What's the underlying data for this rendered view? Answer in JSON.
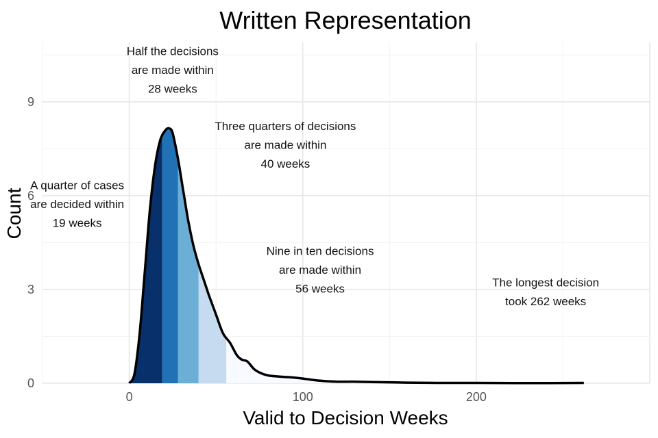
{
  "chart_data": {
    "type": "area",
    "title": "Written Representation",
    "xlabel": "Valid to Decision Weeks",
    "ylabel": "Count",
    "xlim": [
      -50,
      300
    ],
    "ylim": [
      0,
      10.9
    ],
    "x_ticks": [
      0,
      100,
      200
    ],
    "y_ticks": [
      0,
      3,
      6,
      9
    ],
    "grid": true,
    "legend": "none",
    "curve": {
      "x": [
        0,
        3,
        6,
        9,
        12,
        15,
        18,
        21,
        23,
        25,
        28,
        31,
        34,
        37,
        40,
        43,
        46,
        50,
        54,
        58,
        62,
        65,
        68,
        72,
        76,
        80,
        85,
        90,
        95,
        100,
        110,
        120,
        130,
        140,
        150,
        160,
        180,
        200,
        230,
        262
      ],
      "y": [
        0,
        0.3,
        1.6,
        3.6,
        5.6,
        7.0,
        7.8,
        8.1,
        8.15,
        8.0,
        7.2,
        6.2,
        5.2,
        4.4,
        3.8,
        3.3,
        2.8,
        2.2,
        1.6,
        1.3,
        0.9,
        0.75,
        0.7,
        0.45,
        0.32,
        0.25,
        0.22,
        0.2,
        0.18,
        0.15,
        0.08,
        0.05,
        0.05,
        0.04,
        0.03,
        0.02,
        0.01,
        0.01,
        0.005,
        0.01
      ]
    },
    "bands": [
      {
        "from": 0,
        "to": 19,
        "color": "#08306b"
      },
      {
        "from": 19,
        "to": 28,
        "color": "#2171b5"
      },
      {
        "from": 28,
        "to": 40,
        "color": "#6baed6"
      },
      {
        "from": 40,
        "to": 56,
        "color": "#c6dbef"
      },
      {
        "from": 56,
        "to": 262,
        "color": "#f7fbff"
      }
    ],
    "annotations": [
      {
        "lines": [
          "A quarter of cases",
          "are decided within",
          "19 weeks"
        ],
        "x": -30,
        "y": 6.2
      },
      {
        "lines": [
          "Half the decisions",
          "are made within",
          "28 weeks"
        ],
        "x": 25,
        "y": 10.5
      },
      {
        "lines": [
          "Three quarters of decisions",
          "are made within",
          "40 weeks"
        ],
        "x": 90,
        "y": 8.1
      },
      {
        "lines": [
          "Nine in ten decisions",
          "are made within",
          "56 weeks"
        ],
        "x": 110,
        "y": 4.1
      },
      {
        "lines": [
          "The longest decision",
          "took 262 weeks"
        ],
        "x": 240,
        "y": 3.1
      }
    ]
  }
}
